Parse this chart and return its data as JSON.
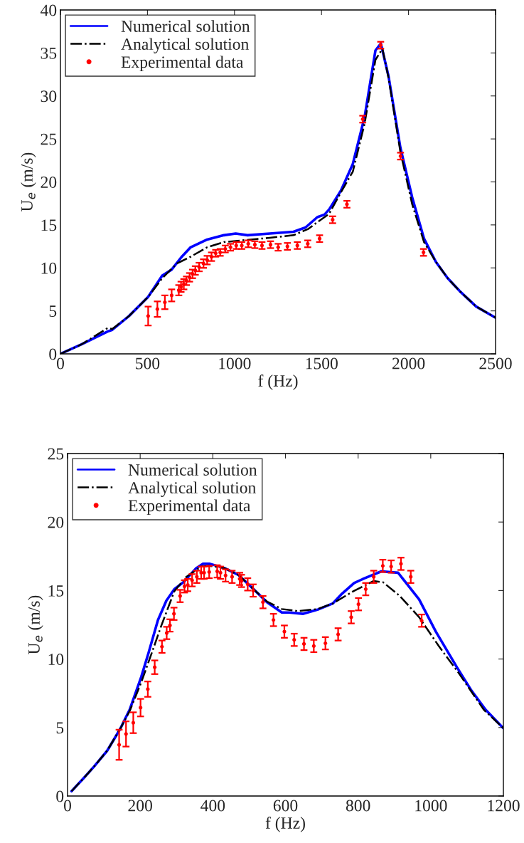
{
  "chart_data": [
    {
      "type": "line",
      "xlabel": "f (Hz)",
      "ylabel": "U$_{e}$ (m/s)",
      "xlim": [
        0,
        2500
      ],
      "ylim": [
        0,
        40
      ],
      "xticks": [
        0,
        500,
        1000,
        1500,
        2000,
        2500
      ],
      "yticks": [
        0,
        5,
        10,
        15,
        20,
        25,
        30,
        35,
        40
      ],
      "grid": false,
      "legend": "top left",
      "series": [
        {
          "name": "Numerical solution",
          "color": "#0000ff",
          "line_style": "solid",
          "marker": "none",
          "x": [
            0,
            121,
            271,
            298,
            394,
            503,
            585,
            639,
            693,
            748,
            843,
            939,
            1007,
            1075,
            1203,
            1339,
            1408,
            1476,
            1517,
            1544,
            1612,
            1680,
            1748,
            1810,
            1841,
            1885,
            1953,
            2021,
            2089,
            2157,
            2225,
            2294,
            2389,
            2500
          ],
          "values": [
            0,
            1.1,
            2.6,
            2.8,
            4.4,
            6.6,
            9.1,
            9.8,
            11.2,
            12.4,
            13.3,
            13.8,
            14.0,
            13.8,
            14.0,
            14.2,
            14.7,
            15.9,
            16.2,
            16.8,
            19.0,
            22.1,
            27.6,
            35.3,
            36.1,
            32.3,
            24.0,
            18.2,
            13.4,
            10.7,
            8.8,
            7.3,
            5.5,
            4.2
          ]
        },
        {
          "name": "Analytical solution",
          "color": "#000000",
          "line_style": "dashdot",
          "marker": "none",
          "x": [
            0,
            121,
            271,
            298,
            394,
            503,
            585,
            668,
            748,
            843,
            939,
            1203,
            1339,
            1421,
            1544,
            1612,
            1680,
            1748,
            1810,
            1850,
            1885,
            1953,
            2021,
            2089,
            2157,
            2225,
            2294,
            2389,
            2500
          ],
          "values": [
            0,
            1.1,
            3.0,
            2.9,
            4.4,
            6.6,
            8.8,
            10.5,
            11.3,
            12.4,
            13.0,
            13.5,
            13.8,
            14.5,
            16.3,
            18.8,
            21.2,
            26.8,
            34.2,
            35.5,
            32.1,
            23.5,
            17.4,
            13.0,
            10.7,
            8.8,
            7.3,
            5.5,
            4.2
          ]
        },
        {
          "name": "Experimental data",
          "type": "scatter",
          "color": "#ff0000",
          "marker": "circle",
          "x": [
            504,
            557,
            600,
            639,
            680,
            693,
            709,
            724,
            742,
            759,
            775,
            797,
            822,
            843,
            868,
            892,
            918,
            947,
            977,
            1010,
            1042,
            1079,
            1117,
            1158,
            1207,
            1251,
            1304,
            1361,
            1421,
            1489,
            1564,
            1646,
            1737,
            1840,
            1954,
            2086
          ],
          "values": [
            4.4,
            5.2,
            6.0,
            6.8,
            7.4,
            7.8,
            8.1,
            8.5,
            8.9,
            9.3,
            9.7,
            10.1,
            10.5,
            10.9,
            11.3,
            11.7,
            11.8,
            12.2,
            12.4,
            12.6,
            12.6,
            12.8,
            12.7,
            12.6,
            12.7,
            12.4,
            12.5,
            12.6,
            12.8,
            13.4,
            15.6,
            17.4,
            27.3,
            35.9,
            23.0,
            11.8
          ],
          "errors": [
            1.1,
            0.9,
            0.8,
            0.7,
            0.6,
            0.6,
            0.6,
            0.5,
            0.5,
            0.5,
            0.5,
            0.5,
            0.5,
            0.5,
            0.5,
            0.4,
            0.4,
            0.4,
            0.4,
            0.4,
            0.4,
            0.4,
            0.4,
            0.4,
            0.4,
            0.4,
            0.4,
            0.4,
            0.4,
            0.4,
            0.4,
            0.4,
            0.4,
            0.4,
            0.4,
            0.4
          ]
        }
      ]
    },
    {
      "type": "line",
      "xlabel": "f (Hz)",
      "ylabel": "U$_{e}$ (m/s)",
      "xlim": [
        0,
        1200
      ],
      "ylim": [
        0,
        25
      ],
      "xticks": [
        0,
        200,
        400,
        600,
        800,
        1000,
        1200
      ],
      "yticks": [
        0,
        5,
        10,
        15,
        20,
        25
      ],
      "grid": false,
      "legend": "top left",
      "series": [
        {
          "name": "Numerical solution",
          "color": "#0000ff",
          "line_style": "solid",
          "marker": "none",
          "x": [
            11,
            46,
            73,
            109,
            145,
            171,
            203,
            223,
            249,
            272,
            294,
            321,
            353,
            373,
            392,
            431,
            470,
            516,
            549,
            590,
            610,
            649,
            688,
            730,
            753,
            789,
            818,
            864,
            910,
            968,
            1014,
            1072,
            1112,
            1151,
            1200
          ],
          "values": [
            0.35,
            1.35,
            2.15,
            3.3,
            4.9,
            6.3,
            8.7,
            10.45,
            12.85,
            14.25,
            15.1,
            15.65,
            16.6,
            16.95,
            16.95,
            16.65,
            16.15,
            15.0,
            14.15,
            13.4,
            13.4,
            13.3,
            13.6,
            14.05,
            14.7,
            15.55,
            15.9,
            16.4,
            16.3,
            14.35,
            12.0,
            9.4,
            7.7,
            6.3,
            4.95
          ]
        },
        {
          "name": "Analytical solution",
          "color": "#000000",
          "line_style": "dashdot",
          "marker": "none",
          "x": [
            11,
            46,
            73,
            109,
            145,
            171,
            203,
            232,
            257,
            294,
            327,
            368,
            390,
            431,
            470,
            516,
            549,
            590,
            634,
            688,
            730,
            787,
            843,
            869,
            915,
            968,
            1022,
            1075,
            1146,
            1200
          ],
          "values": [
            0.35,
            1.35,
            2.15,
            3.3,
            4.9,
            6.2,
            8.3,
            10.45,
            12.35,
            14.95,
            16.0,
            16.75,
            16.8,
            16.65,
            16.15,
            15.0,
            14.2,
            13.65,
            13.5,
            13.65,
            14.05,
            14.95,
            15.7,
            15.6,
            14.6,
            13.05,
            10.95,
            9.05,
            6.3,
            4.95
          ]
        },
        {
          "name": "Experimental data",
          "type": "scatter",
          "color": "#ff0000",
          "marker": "circle",
          "x": [
            142,
            161,
            181,
            201,
            221,
            240,
            260,
            273,
            282,
            293,
            310,
            322,
            331,
            343,
            356,
            368,
            376,
            390,
            412,
            421,
            435,
            453,
            474,
            479,
            496,
            511,
            538,
            567,
            597,
            624,
            651,
            678,
            710,
            745,
            781,
            801,
            821,
            843,
            868,
            891,
            918,
            945,
            975
          ],
          "values": [
            3.74,
            4.53,
            5.35,
            6.45,
            7.8,
            9.4,
            10.9,
            11.9,
            12.45,
            13.3,
            14.6,
            15.3,
            15.4,
            15.75,
            16.0,
            16.3,
            16.3,
            16.35,
            16.4,
            16.3,
            16.1,
            16.0,
            15.85,
            15.7,
            15.45,
            15.0,
            14.15,
            12.85,
            12.0,
            11.4,
            11.1,
            10.95,
            11.15,
            11.8,
            13.05,
            14.0,
            15.1,
            16.0,
            16.8,
            16.75,
            16.95,
            16.0,
            12.8
          ],
          "errors": [
            1.1,
            0.92,
            0.76,
            0.64,
            0.56,
            0.5,
            0.45,
            0.45,
            0.45,
            0.45,
            0.45,
            0.45,
            0.45,
            0.45,
            0.45,
            0.45,
            0.45,
            0.45,
            0.45,
            0.45,
            0.45,
            0.45,
            0.45,
            0.45,
            0.45,
            0.45,
            0.45,
            0.45,
            0.45,
            0.45,
            0.45,
            0.45,
            0.45,
            0.45,
            0.45,
            0.45,
            0.45,
            0.45,
            0.45,
            0.45,
            0.45,
            0.45,
            0.45
          ]
        }
      ]
    }
  ]
}
